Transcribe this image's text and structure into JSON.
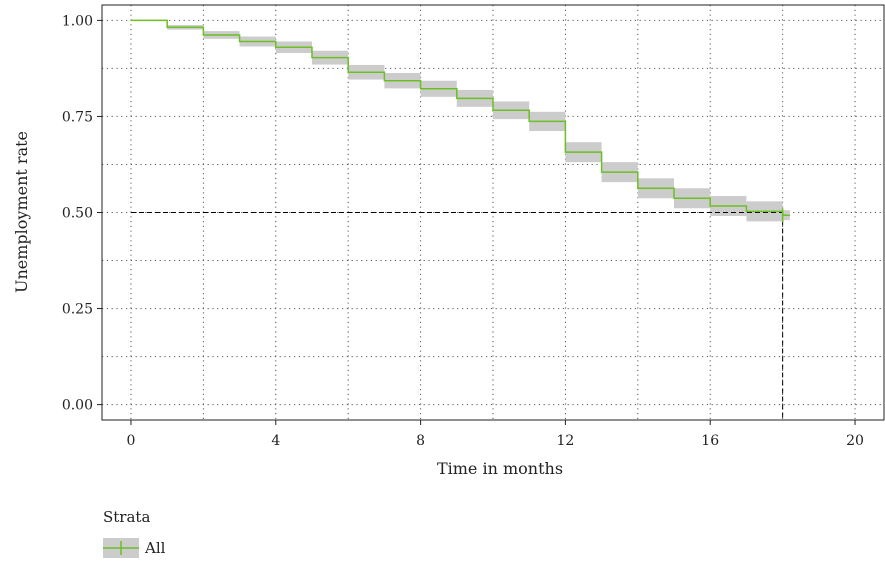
{
  "chart_data": {
    "type": "line",
    "subtype": "kaplan-meier step curve with confidence band",
    "title": "",
    "xlabel": "Time in months",
    "ylabel": "Unemployment rate",
    "xlim": [
      -0.8,
      20.8
    ],
    "ylim": [
      -0.04,
      1.04
    ],
    "x_ticks": [
      0,
      4,
      8,
      12,
      16,
      20
    ],
    "x_tick_labels": [
      "0",
      "4",
      "8",
      "12",
      "16",
      "20"
    ],
    "y_ticks": [
      0.0,
      0.25,
      0.5,
      0.75,
      1.0
    ],
    "y_tick_labels": [
      "0.00",
      "0.25",
      "0.50",
      "0.75",
      "1.00"
    ],
    "grid": "dotted, major and minor",
    "series": [
      {
        "name": "All",
        "color": "#6cbf24",
        "band_color": "#cccccc",
        "steps": [
          {
            "x": 0,
            "y": 1.0,
            "lo": 1.0,
            "hi": 1.0
          },
          {
            "x": 1,
            "y": 0.982,
            "lo": 0.976,
            "hi": 0.988
          },
          {
            "x": 2,
            "y": 0.962,
            "lo": 0.952,
            "hi": 0.972
          },
          {
            "x": 3,
            "y": 0.945,
            "lo": 0.932,
            "hi": 0.958
          },
          {
            "x": 4,
            "y": 0.93,
            "lo": 0.915,
            "hi": 0.945
          },
          {
            "x": 5,
            "y": 0.903,
            "lo": 0.885,
            "hi": 0.921
          },
          {
            "x": 6,
            "y": 0.865,
            "lo": 0.846,
            "hi": 0.884
          },
          {
            "x": 7,
            "y": 0.843,
            "lo": 0.823,
            "hi": 0.863
          },
          {
            "x": 8,
            "y": 0.822,
            "lo": 0.801,
            "hi": 0.843
          },
          {
            "x": 9,
            "y": 0.797,
            "lo": 0.775,
            "hi": 0.819
          },
          {
            "x": 10,
            "y": 0.766,
            "lo": 0.743,
            "hi": 0.789
          },
          {
            "x": 11,
            "y": 0.737,
            "lo": 0.712,
            "hi": 0.762
          },
          {
            "x": 12,
            "y": 0.657,
            "lo": 0.631,
            "hi": 0.683
          },
          {
            "x": 13,
            "y": 0.605,
            "lo": 0.579,
            "hi": 0.631
          },
          {
            "x": 14,
            "y": 0.563,
            "lo": 0.537,
            "hi": 0.589
          },
          {
            "x": 15,
            "y": 0.537,
            "lo": 0.511,
            "hi": 0.563
          },
          {
            "x": 16,
            "y": 0.517,
            "lo": 0.491,
            "hi": 0.543
          },
          {
            "x": 17,
            "y": 0.503,
            "lo": 0.477,
            "hi": 0.529
          },
          {
            "x": 18,
            "y": 0.493,
            "lo": 0.48,
            "hi": 0.506
          }
        ],
        "end_x": 18.2,
        "censor_marks": [
          {
            "x": 18.0,
            "y": 0.493
          }
        ]
      }
    ],
    "median_reference": {
      "y": 0.5,
      "x": 18.0,
      "style": "dashed",
      "color": "#000000"
    },
    "legend": {
      "title": "Strata",
      "position": "bottom-left",
      "items": [
        {
          "label": "All",
          "color": "#6cbf24",
          "band_color": "#cccccc"
        }
      ]
    }
  }
}
